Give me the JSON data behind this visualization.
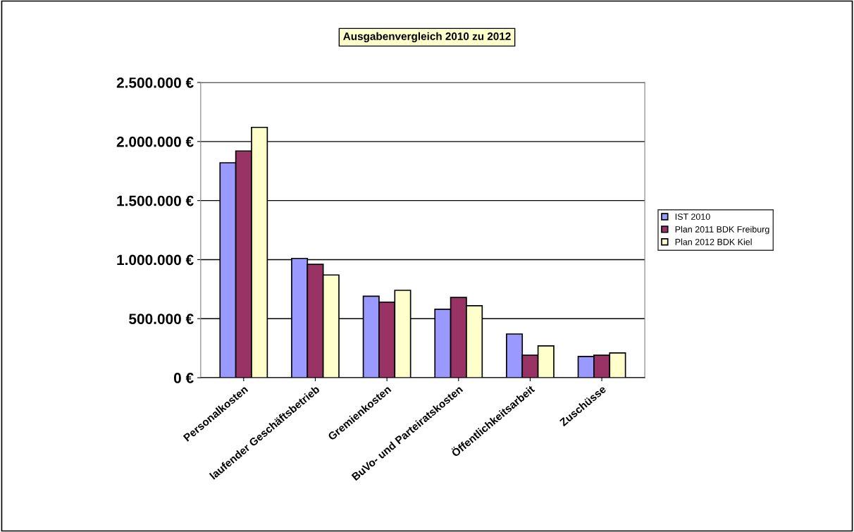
{
  "chart_data": {
    "type": "bar",
    "title": "Ausgabenvergleich 2010 zu 2012",
    "categories": [
      "Personalkosten",
      "laufender Geschäftsbetrieb",
      "Gremienkosten",
      "BuVo- und Parteiratskosten",
      "Öffentlichkeitsarbeit",
      "Zuschüsse"
    ],
    "series": [
      {
        "name": "IST 2010",
        "color": "#9999ff",
        "values": [
          1820000,
          1010000,
          690000,
          580000,
          370000,
          180000
        ]
      },
      {
        "name": "Plan 2011 BDK Freiburg",
        "color": "#993366",
        "values": [
          1920000,
          960000,
          640000,
          680000,
          190000,
          190000
        ]
      },
      {
        "name": "Plan 2012 BDK Kiel",
        "color": "#ffffcc",
        "values": [
          2120000,
          870000,
          740000,
          610000,
          270000,
          210000
        ]
      }
    ],
    "ylim": [
      0,
      2500000
    ],
    "yticks": [
      {
        "value": 0,
        "label": "0 €"
      },
      {
        "value": 500000,
        "label": "500.000 €"
      },
      {
        "value": 1000000,
        "label": "1.000.000 €"
      },
      {
        "value": 1500000,
        "label": "1.500.000 €"
      },
      {
        "value": 2000000,
        "label": "2.000.000 €"
      },
      {
        "value": 2500000,
        "label": "2.500.000 €"
      }
    ],
    "grid": "y",
    "legend": "right"
  }
}
